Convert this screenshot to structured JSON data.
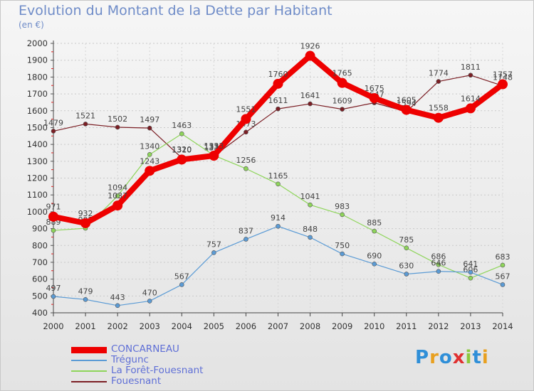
{
  "title": "Evolution du Montant de la Dette par Habitant",
  "subtitle": "(en €)",
  "logo": {
    "letters": [
      "P",
      "r",
      "o",
      "x",
      "i",
      "t",
      "i"
    ],
    "colors": [
      "#2f8fd8",
      "#e8a020",
      "#2f8fd8",
      "#e03030",
      "#8cc83c",
      "#2f8fd8",
      "#e8a020"
    ]
  },
  "chart_data": {
    "type": "line",
    "title": "Evolution du Montant de la Dette par Habitant",
    "ylabel": "(en €)",
    "xlabel": "",
    "x": [
      "2000",
      "2001",
      "2002",
      "2003",
      "2004",
      "2005",
      "2006",
      "2007",
      "2008",
      "2009",
      "2010",
      "2011",
      "2012",
      "2013",
      "2014"
    ],
    "ylim": [
      400,
      2000
    ],
    "yticks": [
      400,
      500,
      600,
      700,
      800,
      900,
      1000,
      1100,
      1200,
      1300,
      1400,
      1500,
      1600,
      1700,
      1800,
      1900,
      2000
    ],
    "grid": "horizontal dashed",
    "legend_position": "bottom-left",
    "series": [
      {
        "name": "Fouesnant",
        "color": "#7b1e24",
        "bold": false,
        "values": [
          1479,
          1521,
          1502,
          1497,
          1320,
          1331,
          1473,
          1611,
          1641,
          1609,
          1647,
          1594,
          1774,
          1811,
          1748
        ]
      },
      {
        "name": "La Forêt-Fouesnant",
        "color": "#8ed55a",
        "bold": false,
        "values": [
          889,
          902,
          1094,
          1340,
          1463,
          1335,
          1256,
          1165,
          1041,
          983,
          885,
          785,
          686,
          606,
          683
        ]
      },
      {
        "name": "Trégunc",
        "color": "#5b9bd5",
        "bold": false,
        "values": [
          497,
          479,
          443,
          470,
          567,
          757,
          837,
          914,
          848,
          750,
          690,
          630,
          646,
          641,
          567
        ]
      },
      {
        "name": "CONCARNEAU",
        "color": "#ee0000",
        "bold": true,
        "values": [
          971,
          932,
          1037,
          1243,
          1310,
          1333,
          1551,
          1760,
          1926,
          1765,
          1675,
          1605,
          1558,
          1614,
          1757
        ]
      }
    ]
  },
  "legend": [
    {
      "label": "CONCARNEAU",
      "color": "#ee0000",
      "thick": true
    },
    {
      "label": "Trégunc",
      "color": "#5b9bd5",
      "thick": false
    },
    {
      "label": "La Forêt-Fouesnant",
      "color": "#8ed55a",
      "thick": false
    },
    {
      "label": "Fouesnant",
      "color": "#7b1e24",
      "thick": false
    }
  ]
}
